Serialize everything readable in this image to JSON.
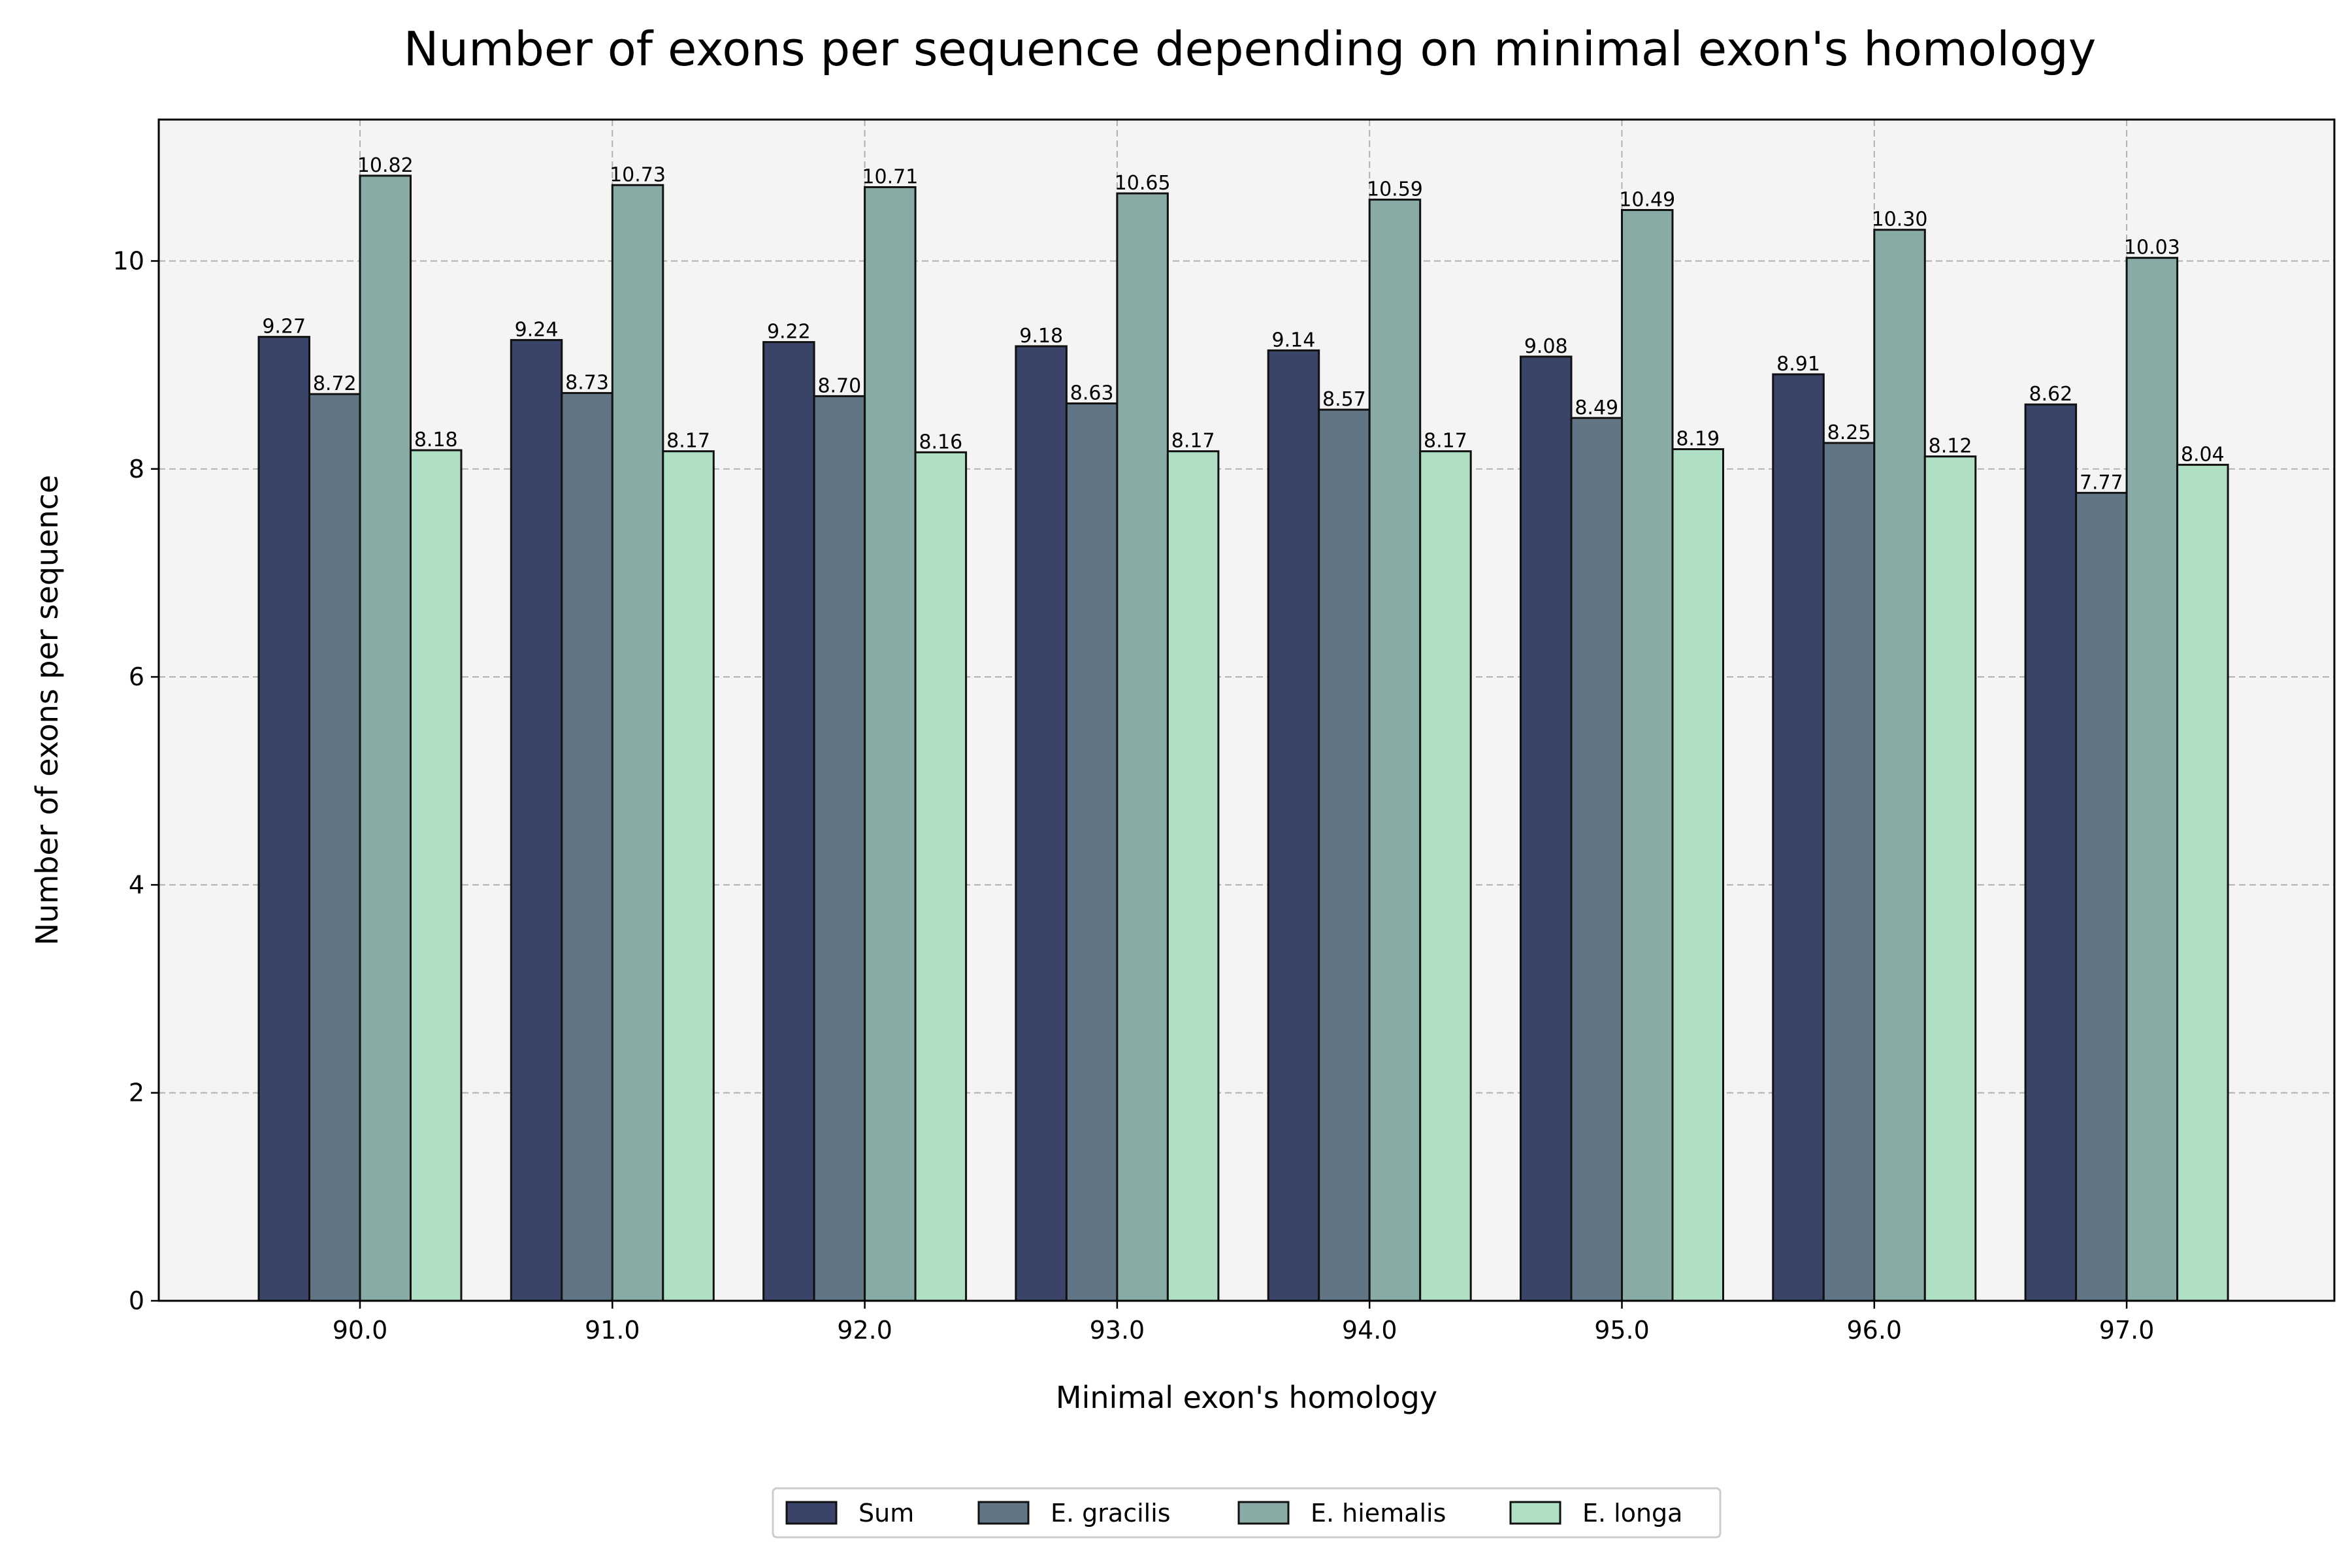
{
  "chart_data": {
    "type": "bar",
    "title": "Number of exons per sequence depending on minimal exon's homology",
    "xlabel": "Minimal exon's homology",
    "ylabel": "Number of exons per sequence",
    "categories": [
      "90.0",
      "91.0",
      "92.0",
      "93.0",
      "94.0",
      "95.0",
      "96.0",
      "97.0"
    ],
    "ylim": [
      0,
      11.36
    ],
    "yticks": [
      "0",
      "2",
      "4",
      "6",
      "8",
      "10"
    ],
    "grid": true,
    "legend_position": "bottom-center",
    "series": [
      {
        "name": "Sum",
        "color": "#3a4468",
        "values": [
          9.27,
          9.24,
          9.22,
          9.18,
          9.14,
          9.08,
          8.91,
          8.62
        ],
        "labels": [
          "9.27",
          "9.24",
          "9.22",
          "9.18",
          "9.14",
          "9.08",
          "8.91",
          "8.62"
        ]
      },
      {
        "name": "E. gracilis",
        "color": "#617585",
        "values": [
          8.72,
          8.73,
          8.7,
          8.63,
          8.57,
          8.49,
          8.25,
          7.77
        ],
        "labels": [
          "8.72",
          "8.73",
          "8.70",
          "8.63",
          "8.57",
          "8.49",
          "8.25",
          "7.77"
        ]
      },
      {
        "name": "E. hiemalis",
        "color": "#89aba5",
        "values": [
          10.82,
          10.73,
          10.71,
          10.65,
          10.59,
          10.49,
          10.3,
          10.03
        ],
        "labels": [
          "10.82",
          "10.73",
          "10.71",
          "10.65",
          "10.59",
          "10.49",
          "10.30",
          "10.03"
        ]
      },
      {
        "name": "E. longa",
        "color": "#b0e0c4",
        "values": [
          8.18,
          8.17,
          8.16,
          8.17,
          8.17,
          8.19,
          8.12,
          8.04
        ],
        "labels": [
          "8.18",
          "8.17",
          "8.16",
          "8.17",
          "8.17",
          "8.19",
          "8.12",
          "8.04"
        ]
      }
    ]
  }
}
